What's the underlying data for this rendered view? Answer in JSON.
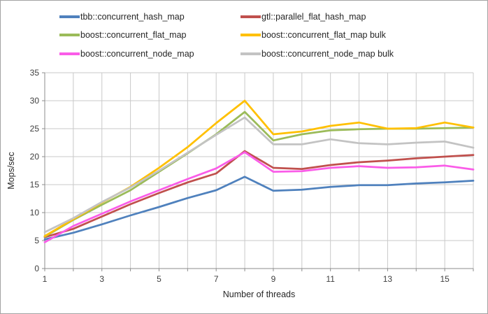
{
  "window": {
    "background": "#ffffff",
    "border_color": "#a3a3a3"
  },
  "chart_data": {
    "type": "line",
    "x": [
      1,
      2,
      3,
      4,
      5,
      6,
      7,
      8,
      9,
      10,
      11,
      12,
      13,
      14,
      15,
      16
    ],
    "series": [
      {
        "name": "tbb::concurrent_hash_map",
        "color": "#4f81bd",
        "values": [
          5.2,
          6.4,
          7.9,
          9.5,
          11.0,
          12.6,
          14.0,
          16.4,
          13.9,
          14.1,
          14.6,
          14.9,
          14.9,
          15.2,
          15.4,
          15.7
        ]
      },
      {
        "name": "gtl::parallel_flat_hash_map",
        "color": "#c0504d",
        "values": [
          5.6,
          7.1,
          9.3,
          11.5,
          13.5,
          15.4,
          17.0,
          21.0,
          18.0,
          17.8,
          18.5,
          19.0,
          19.3,
          19.7,
          20.0,
          20.3
        ]
      },
      {
        "name": "boost::concurrent_flat_map",
        "color": "#9bbb59",
        "values": [
          5.7,
          8.7,
          11.4,
          14.0,
          17.3,
          20.6,
          24.0,
          28.0,
          22.9,
          24.0,
          24.7,
          24.9,
          25.0,
          25.0,
          25.1,
          25.2
        ]
      },
      {
        "name": "boost::concurrent_flat_map bulk",
        "color": "#ffc000",
        "values": [
          5.8,
          8.8,
          11.8,
          14.6,
          18.0,
          21.7,
          26.0,
          30.0,
          24.0,
          24.5,
          25.5,
          26.1,
          25.0,
          25.1,
          26.1,
          25.2
        ]
      },
      {
        "name": "boost::concurrent_node_map",
        "color": "#fa5ce8",
        "values": [
          4.7,
          7.6,
          9.8,
          12.0,
          14.0,
          16.0,
          17.9,
          20.8,
          17.3,
          17.4,
          18.0,
          18.3,
          18.0,
          18.1,
          18.4,
          17.7
        ]
      },
      {
        "name": "boost::concurrent_node_map bulk",
        "color": "#c3c3c3",
        "values": [
          6.5,
          9.0,
          11.9,
          14.5,
          17.5,
          20.7,
          23.9,
          27.0,
          22.2,
          22.2,
          23.1,
          22.4,
          22.2,
          22.5,
          22.7,
          21.6
        ]
      }
    ],
    "title": "",
    "xlabel": "Number of threads",
    "ylabel": "Mops/sec",
    "ylim": [
      0,
      35
    ],
    "y_ticks": [
      0,
      5,
      10,
      15,
      20,
      25,
      30,
      35
    ],
    "x_ticks_labeled": [
      1,
      3,
      5,
      7,
      9,
      11,
      13,
      15
    ],
    "x_tick_labels": [
      "1",
      "3",
      "5",
      "7",
      "9",
      "11",
      "13",
      "15"
    ],
    "y_tick_labels": [
      "0",
      "5",
      "10",
      "15",
      "20",
      "25",
      "30",
      "35"
    ],
    "grid": "both",
    "legend_position": "top",
    "colors": {
      "gridline": "#c9c9c9",
      "axis": "#8c8c8c",
      "tick_text": "#3f3f3f"
    }
  }
}
